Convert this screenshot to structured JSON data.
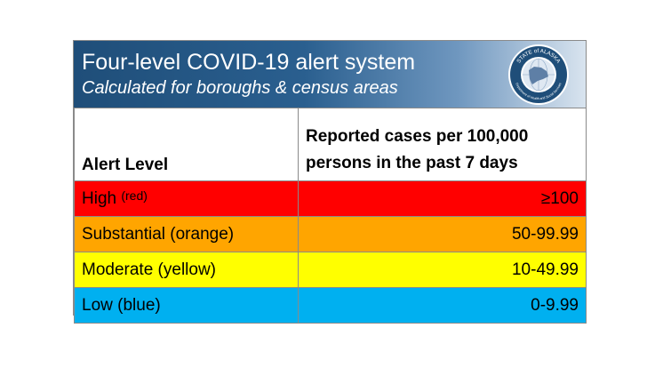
{
  "banner": {
    "title": "Four-level COVID-19 alert system",
    "subtitle": "Calculated for boroughs & census areas",
    "logo_icon": "state-of-alaska-seal-icon",
    "seal_text_top": "STATE of ALASKA",
    "seal_text_bottom": "Department of Health and Social Services"
  },
  "table": {
    "headers": {
      "level": "Alert Level",
      "cases": "Reported cases per 100,000 persons in the past 7 days"
    },
    "rows": [
      {
        "level": "High",
        "color_label": "(red)",
        "range": "≥100",
        "color": "#ff0000"
      },
      {
        "level": "Substantial (orange)",
        "range": "50-99.99",
        "color": "#ffa500"
      },
      {
        "level": "Moderate (yellow)",
        "range": "10-49.99",
        "color": "#ffff00"
      },
      {
        "level": "Low (blue)",
        "range": "0-9.99",
        "color": "#00b0f0"
      }
    ]
  }
}
